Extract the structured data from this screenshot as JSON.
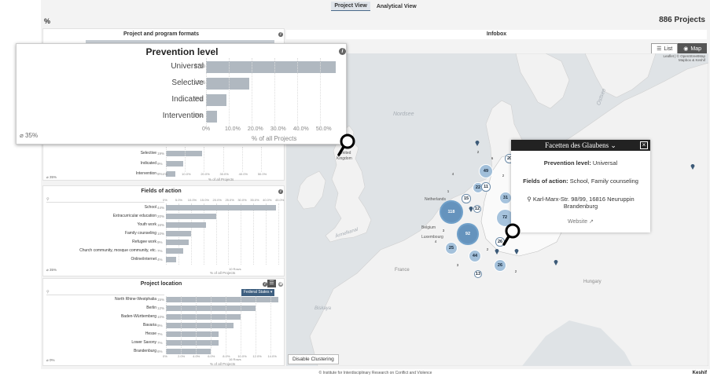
{
  "topbar": {
    "views": [
      "Project View",
      "Analytical View"
    ],
    "active": 0
  },
  "header": {
    "percent_icon": "%",
    "project_count": "886 Projects"
  },
  "panels": {
    "formats": {
      "title": "Project and program formats"
    },
    "prevention_small": {
      "rows": [
        {
          "label": "Selective",
          "pct": "19%",
          "value": 19
        },
        {
          "label": "Indicated",
          "pct": "9%",
          "value": 9
        },
        {
          "label": "Intervention",
          "pct": "5%",
          "value": 5
        }
      ],
      "axis": [
        "0%",
        "10.0%",
        "20.0%",
        "30.0%",
        "40.0%",
        "50.0%"
      ],
      "axis_title": "% of all Projects",
      "null_note": "35%"
    },
    "fields": {
      "title": "Fields of action",
      "axis": [
        "0%",
        "5.0%",
        "10.0%",
        "15.0%",
        "20.0%",
        "25.0%",
        "30.0%",
        "35.0%",
        "40.0%",
        "45.0%"
      ],
      "rows": [
        {
          "label": "School",
          "pct": "44%",
          "value": 44
        },
        {
          "label": "Extracurricular education",
          "pct": "20%",
          "value": 20
        },
        {
          "label": "Youth work",
          "pct": "16%",
          "value": 16
        },
        {
          "label": "Family counseling",
          "pct": "10%",
          "value": 10
        },
        {
          "label": "Refugee work",
          "pct": "9%",
          "value": 9
        },
        {
          "label": "Church community, mosque community, etc.",
          "pct": "7%",
          "value": 7
        },
        {
          "label": "Online/internet",
          "pct": "4%",
          "value": 4
        }
      ],
      "more_rows": "10 Rows",
      "axis_title": "% of all Projects",
      "null_note": "35%"
    },
    "location": {
      "title": "Project location",
      "dropdown": "Federal States",
      "axis": [
        "0%",
        "2.0%",
        "4.0%",
        "6.0%",
        "8.0%",
        "10.0%",
        "12.0%",
        "14.0%"
      ],
      "rows": [
        {
          "label": "North Rhine-Westphalia",
          "pct": "15%",
          "value": 15
        },
        {
          "label": "Berlin",
          "pct": "12%",
          "value": 12
        },
        {
          "label": "Baden-Württemberg",
          "pct": "10%",
          "value": 10
        },
        {
          "label": "Bavaria",
          "pct": "9%",
          "value": 9
        },
        {
          "label": "Hesse",
          "pct": "7%",
          "value": 7
        },
        {
          "label": "Lower Saxony",
          "pct": "7%",
          "value": 7
        },
        {
          "label": "Brandenburg",
          "pct": "6%",
          "value": 6
        }
      ],
      "more_rows": "16 Rows",
      "axis_title": "% of all Projects",
      "null_note": "0%"
    }
  },
  "zoom": {
    "title": "Prevention level",
    "rows": [
      {
        "label": "Universal",
        "pct": "57%",
        "value": 57
      },
      {
        "label": "Selective",
        "pct": "19%",
        "value": 19
      },
      {
        "label": "Indicated",
        "pct": "9%",
        "value": 9
      },
      {
        "label": "Intervention",
        "pct": "5%",
        "value": 5
      }
    ],
    "axis": [
      "0%",
      "10.0%",
      "20.0%",
      "30.0%",
      "40.0%",
      "50.0%"
    ],
    "axis_title": "% of all Projects",
    "null_note": "35%"
  },
  "infobox": {
    "title": "Infobox"
  },
  "map": {
    "toggle": [
      "List",
      "Map"
    ],
    "attribution_lines": [
      "Leaflet | © OpenStreetMap",
      "Mapbox & Keshif"
    ],
    "labels": {
      "nordsee": "Nordsee",
      "ostsee": "Ostsee",
      "kingdom": "Kingdom",
      "united": "United",
      "netherlands": "Netherlands",
      "belgium": "Belgium",
      "luxembourg": "Luxembourg",
      "france": "France",
      "hungary": "Hungary",
      "channel": "Ärmelkanal",
      "biscay": "Biskaya"
    },
    "clusters": [
      "118",
      "92",
      "72",
      "49",
      "31",
      "26",
      "25",
      "44",
      "22",
      "26",
      "20",
      "15",
      "21",
      "11",
      "12",
      "13",
      "4",
      "2",
      "6",
      "3",
      "2",
      "2",
      "3",
      "4",
      "2",
      "1"
    ],
    "disable_button": "Disable Clustering"
  },
  "popup": {
    "title": "Facetten des Glaubens",
    "prevention_label": "Prevention level:",
    "prevention_value": "Universal",
    "fields_label": "Fields of action:",
    "fields_value": "School, Family counseling",
    "address_line1": "Karl-Marx-Str. 98/99, 16816 Neuruppin",
    "address_line2": "Brandenburg",
    "website": "Website"
  },
  "footer": {
    "text": "© Institute for Interdisciplinary Research on Conflict and Violence",
    "logo": "Keshif"
  }
}
